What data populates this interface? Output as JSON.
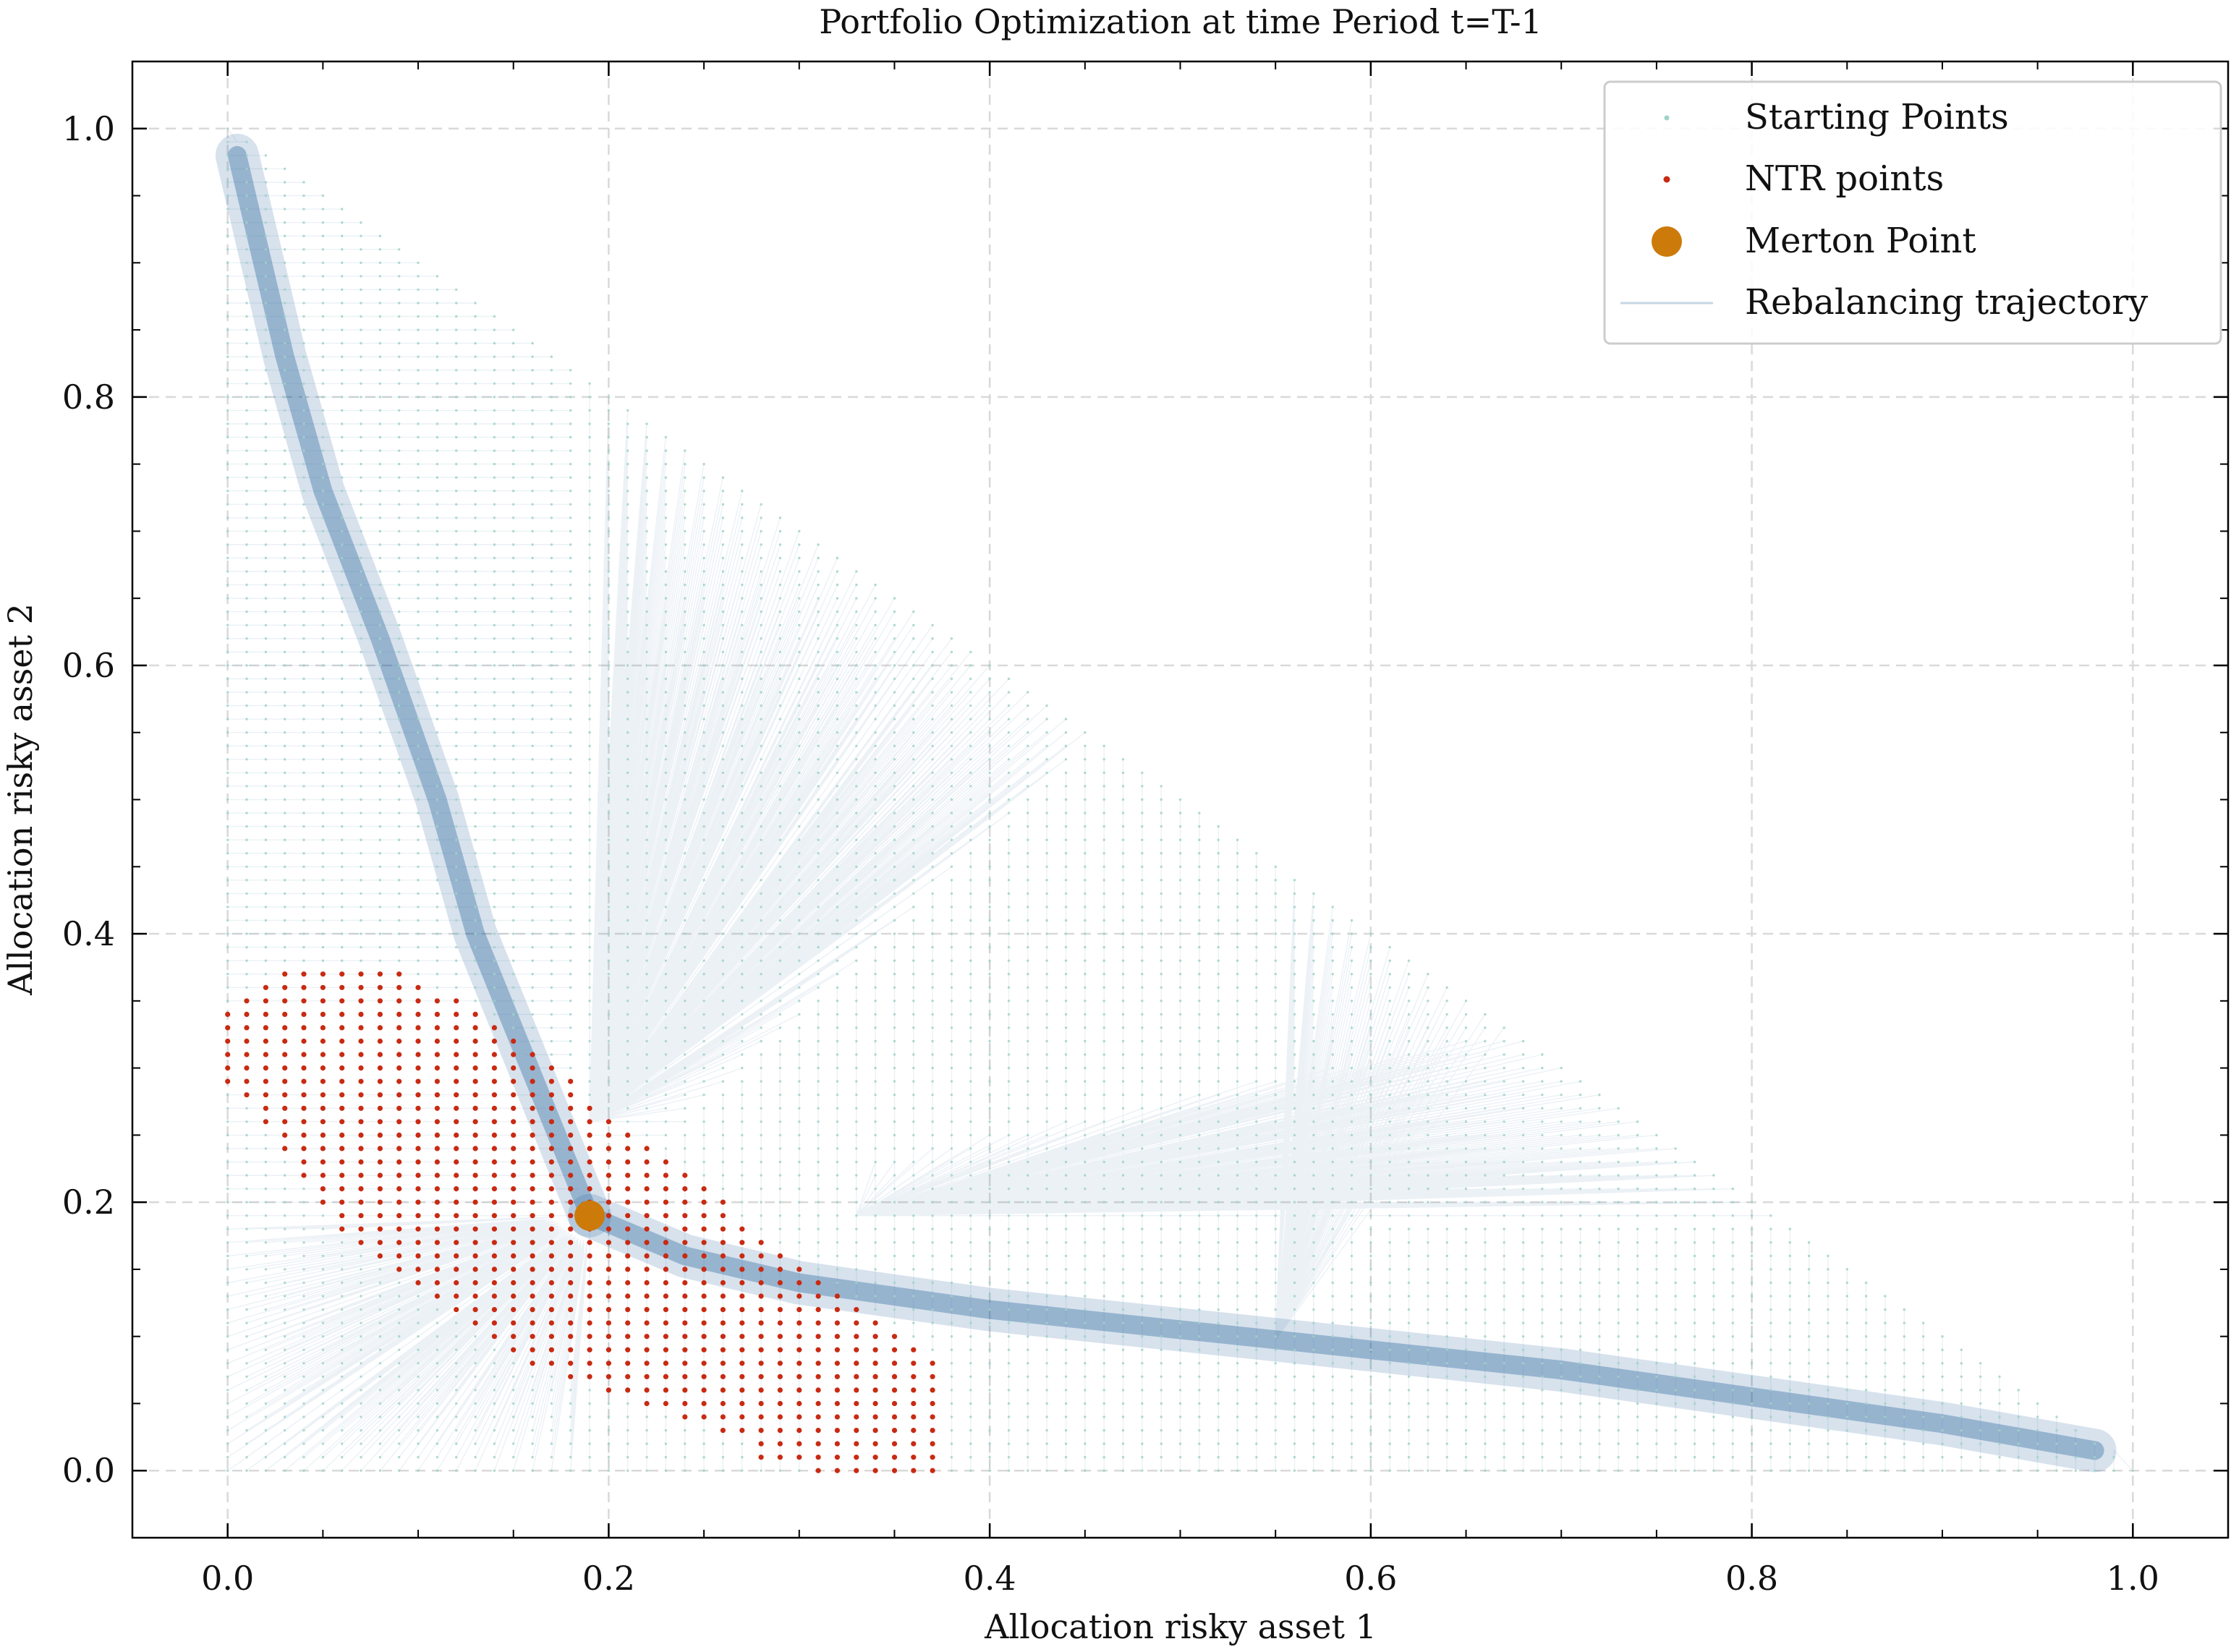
{
  "chart_data": {
    "type": "scatter",
    "title": "Portfolio Optimization at time Period t=T-1",
    "xlabel": "Allocation risky asset 1",
    "ylabel": "Allocation risky asset 2",
    "xlim": [
      -0.05,
      1.05
    ],
    "ylim": [
      -0.05,
      1.05
    ],
    "xticks": [
      0.0,
      0.2,
      0.4,
      0.6,
      0.8,
      1.0
    ],
    "xtick_labels": [
      "0.0",
      "0.2",
      "0.4",
      "0.6",
      "0.8",
      "1.0"
    ],
    "yticks": [
      0.0,
      0.2,
      0.4,
      0.6,
      0.8,
      1.0
    ],
    "ytick_labels": [
      "0.0",
      "0.2",
      "0.4",
      "0.6",
      "0.8",
      "1.0"
    ],
    "grid": true,
    "legend_position": "top-right",
    "legend": [
      {
        "label": "Starting Points",
        "marker": "dot-small"
      },
      {
        "label": "NTR points",
        "marker": "dot"
      },
      {
        "label": "Merton Point",
        "marker": "circle-large"
      },
      {
        "label": "Rebalancing trajectory",
        "marker": "line"
      }
    ],
    "colors": {
      "starting_points": "#9fd3c7",
      "ntr_points": "#c82a12",
      "merton_point": "#cc7a0a",
      "trajectory": "#1f5f99",
      "grid": "#d9d9d9"
    },
    "grid_step": 0.01,
    "merton_point": {
      "x": 0.19,
      "y": 0.19
    },
    "rebalance_curve": {
      "right_branch": [
        [
          0.19,
          0.19
        ],
        [
          0.24,
          0.16
        ],
        [
          0.3,
          0.14
        ],
        [
          0.4,
          0.12
        ],
        [
          0.5,
          0.105
        ],
        [
          0.6,
          0.09
        ],
        [
          0.7,
          0.075
        ],
        [
          0.8,
          0.055
        ],
        [
          0.9,
          0.035
        ],
        [
          0.98,
          0.015
        ]
      ],
      "upper_branch": [
        [
          0.19,
          0.19
        ],
        [
          0.17,
          0.26
        ],
        [
          0.15,
          0.33
        ],
        [
          0.13,
          0.4
        ],
        [
          0.11,
          0.5
        ],
        [
          0.08,
          0.62
        ],
        [
          0.05,
          0.73
        ],
        [
          0.03,
          0.83
        ],
        [
          0.015,
          0.92
        ],
        [
          0.005,
          0.98
        ]
      ]
    },
    "ntr_region": [
      {
        "y": 0.0,
        "x_min": 0.31,
        "x_max": 0.37
      },
      {
        "y": 0.01,
        "x_min": 0.28,
        "x_max": 0.37
      },
      {
        "y": 0.02,
        "x_min": 0.28,
        "x_max": 0.37
      },
      {
        "y": 0.03,
        "x_min": 0.26,
        "x_max": 0.37
      },
      {
        "y": 0.04,
        "x_min": 0.24,
        "x_max": 0.37
      },
      {
        "y": 0.05,
        "x_min": 0.22,
        "x_max": 0.37
      },
      {
        "y": 0.06,
        "x_min": 0.2,
        "x_max": 0.37
      },
      {
        "y": 0.07,
        "x_min": 0.18,
        "x_max": 0.37
      },
      {
        "y": 0.08,
        "x_min": 0.16,
        "x_max": 0.37
      },
      {
        "y": 0.09,
        "x_min": 0.15,
        "x_max": 0.36
      },
      {
        "y": 0.1,
        "x_min": 0.14,
        "x_max": 0.35
      },
      {
        "y": 0.11,
        "x_min": 0.13,
        "x_max": 0.34
      },
      {
        "y": 0.12,
        "x_min": 0.12,
        "x_max": 0.33
      },
      {
        "y": 0.13,
        "x_min": 0.11,
        "x_max": 0.32
      },
      {
        "y": 0.14,
        "x_min": 0.1,
        "x_max": 0.31
      },
      {
        "y": 0.15,
        "x_min": 0.09,
        "x_max": 0.3
      },
      {
        "y": 0.16,
        "x_min": 0.08,
        "x_max": 0.29
      },
      {
        "y": 0.17,
        "x_min": 0.07,
        "x_max": 0.28
      },
      {
        "y": 0.18,
        "x_min": 0.06,
        "x_max": 0.27
      },
      {
        "y": 0.19,
        "x_min": 0.06,
        "x_max": 0.26
      },
      {
        "y": 0.2,
        "x_min": 0.05,
        "x_max": 0.26
      },
      {
        "y": 0.21,
        "x_min": 0.05,
        "x_max": 0.25
      },
      {
        "y": 0.22,
        "x_min": 0.04,
        "x_max": 0.24
      },
      {
        "y": 0.23,
        "x_min": 0.04,
        "x_max": 0.23
      },
      {
        "y": 0.24,
        "x_min": 0.03,
        "x_max": 0.22
      },
      {
        "y": 0.25,
        "x_min": 0.03,
        "x_max": 0.21
      },
      {
        "y": 0.26,
        "x_min": 0.02,
        "x_max": 0.2
      },
      {
        "y": 0.27,
        "x_min": 0.02,
        "x_max": 0.19
      },
      {
        "y": 0.28,
        "x_min": 0.01,
        "x_max": 0.18
      },
      {
        "y": 0.29,
        "x_min": 0.0,
        "x_max": 0.18
      },
      {
        "y": 0.3,
        "x_min": 0.0,
        "x_max": 0.17
      },
      {
        "y": 0.31,
        "x_min": 0.0,
        "x_max": 0.16
      },
      {
        "y": 0.32,
        "x_min": 0.0,
        "x_max": 0.15
      },
      {
        "y": 0.33,
        "x_min": 0.0,
        "x_max": 0.14
      },
      {
        "y": 0.34,
        "x_min": 0.0,
        "x_max": 0.13
      },
      {
        "y": 0.35,
        "x_min": 0.01,
        "x_max": 0.12
      },
      {
        "y": 0.36,
        "x_min": 0.02,
        "x_max": 0.1
      },
      {
        "y": 0.37,
        "x_min": 0.03,
        "x_max": 0.09
      }
    ]
  }
}
